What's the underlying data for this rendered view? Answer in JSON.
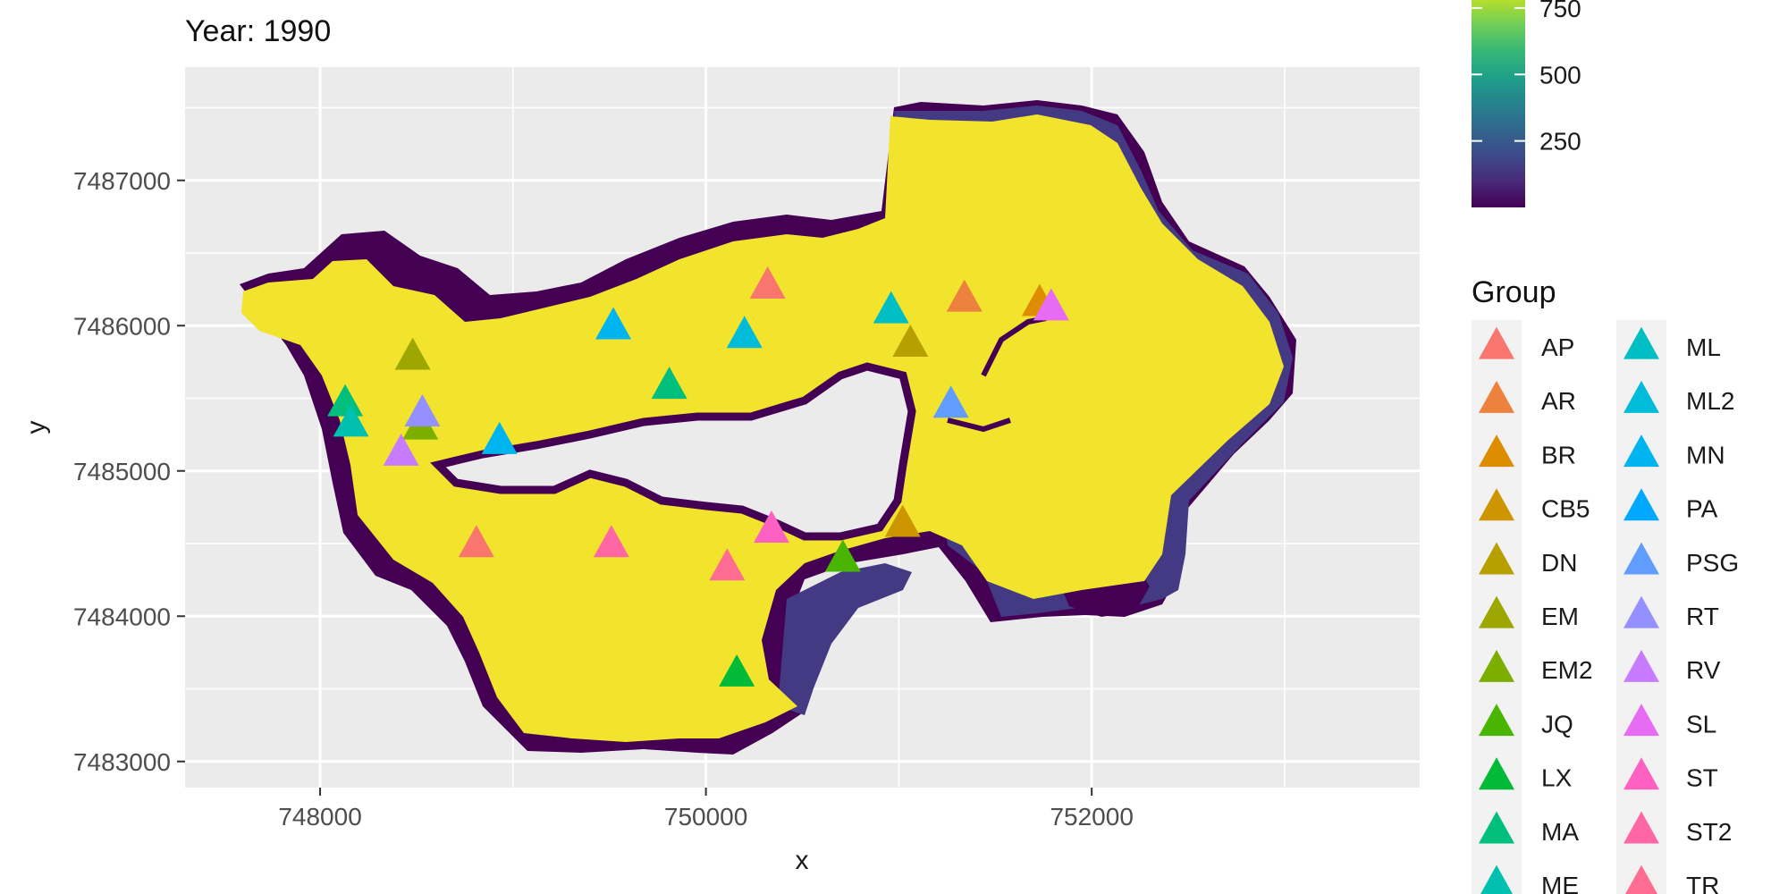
{
  "chart_data": {
    "type": "scatter",
    "title": "Year: 1990",
    "xlabel": "x",
    "ylabel": "y",
    "xlim": [
      747300,
      753700
    ],
    "ylim": [
      7482820,
      7487780
    ],
    "x_ticks": [
      748000,
      750000,
      752000
    ],
    "x_tick_labels": [
      "748000",
      "750000",
      "752000"
    ],
    "y_ticks": [
      7483000,
      7484000,
      7485000,
      7486000,
      7487000
    ],
    "y_tick_labels": [
      "7483000",
      "7484000",
      "7485000",
      "7486000",
      "7487000"
    ],
    "grid": true,
    "background_raster": {
      "description_colors": {
        "land": "#f2e42d",
        "border_dark": "#440154",
        "border_mid": "#433a83"
      }
    },
    "colorbar": {
      "palette": "viridis",
      "tick_labels": [
        "750",
        "500",
        "250"
      ],
      "tick_values": [
        750,
        500,
        250
      ]
    },
    "legend": {
      "title": "Group",
      "placement": "right",
      "col1": [
        {
          "label": "AP",
          "color": "#F8766D"
        },
        {
          "label": "AR",
          "color": "#ED813E"
        },
        {
          "label": "BR",
          "color": "#DE8C00"
        },
        {
          "label": "CB5",
          "color": "#CD9600"
        },
        {
          "label": "DN",
          "color": "#B79F00"
        },
        {
          "label": "EM",
          "color": "#9DA700"
        },
        {
          "label": "EM2",
          "color": "#7CAE00"
        },
        {
          "label": "JQ",
          "color": "#49B500"
        },
        {
          "label": "LX",
          "color": "#00BA38"
        },
        {
          "label": "MA",
          "color": "#00BF7D"
        },
        {
          "label": "ME",
          "color": "#00C0AF"
        }
      ],
      "col2": [
        {
          "label": "ML",
          "color": "#00BFC4"
        },
        {
          "label": "ML2",
          "color": "#00BCD8"
        },
        {
          "label": "MN",
          "color": "#00B4EF"
        },
        {
          "label": "PA",
          "color": "#00A9FF"
        },
        {
          "label": "PSG",
          "color": "#619CFF"
        },
        {
          "label": "RT",
          "color": "#9590FF"
        },
        {
          "label": "RV",
          "color": "#C77CFF"
        },
        {
          "label": "SL",
          "color": "#E76BF3"
        },
        {
          "label": "ST",
          "color": "#FF61C3"
        },
        {
          "label": "ST2",
          "color": "#FF67A4"
        },
        {
          "label": "TR",
          "color": "#FF6C91"
        }
      ]
    },
    "points": [
      {
        "group": "AP",
        "x": 750320,
        "y": 7486270,
        "color": "#F8766D"
      },
      {
        "group": "AP",
        "x": 748810,
        "y": 7484490,
        "color": "#F8766D"
      },
      {
        "group": "AR",
        "x": 751340,
        "y": 7486180,
        "color": "#ED813E"
      },
      {
        "group": "BR",
        "x": 751730,
        "y": 7486150,
        "color": "#DE8C00"
      },
      {
        "group": "CB5",
        "x": 751020,
        "y": 7484630,
        "color": "#CD9600"
      },
      {
        "group": "DN",
        "x": 751060,
        "y": 7485870,
        "color": "#B79F00"
      },
      {
        "group": "EM",
        "x": 748480,
        "y": 7485780,
        "color": "#9DA700"
      },
      {
        "group": "EM2",
        "x": 748520,
        "y": 7485300,
        "color": "#7CAE00"
      },
      {
        "group": "JQ",
        "x": 750710,
        "y": 7484390,
        "color": "#49B500"
      },
      {
        "group": "LX",
        "x": 750160,
        "y": 7483600,
        "color": "#00BA38"
      },
      {
        "group": "MA",
        "x": 749810,
        "y": 7485580,
        "color": "#00BF7D"
      },
      {
        "group": "MA",
        "x": 748130,
        "y": 7485460,
        "color": "#00BF7D"
      },
      {
        "group": "ME",
        "x": 748160,
        "y": 7485320,
        "color": "#00C0AF"
      },
      {
        "group": "ML",
        "x": 750960,
        "y": 7486100,
        "color": "#00BFC4"
      },
      {
        "group": "ML2",
        "x": 750200,
        "y": 7485930,
        "color": "#00BCD8"
      },
      {
        "group": "MN",
        "x": 749520,
        "y": 7485990,
        "color": "#00B4EF"
      },
      {
        "group": "MN",
        "x": 748930,
        "y": 7485200,
        "color": "#00B4EF"
      },
      {
        "group": "PSG",
        "x": 751270,
        "y": 7485450,
        "color": "#619CFF"
      },
      {
        "group": "RT",
        "x": 748530,
        "y": 7485390,
        "color": "#9590FF"
      },
      {
        "group": "RV",
        "x": 748420,
        "y": 7485120,
        "color": "#C77CFF"
      },
      {
        "group": "SL",
        "x": 751790,
        "y": 7486120,
        "color": "#E76BF3"
      },
      {
        "group": "ST",
        "x": 750340,
        "y": 7484590,
        "color": "#FF61C3"
      },
      {
        "group": "ST2",
        "x": 749510,
        "y": 7484490,
        "color": "#FF67A4"
      },
      {
        "group": "TR",
        "x": 750110,
        "y": 7484330,
        "color": "#FF6C91"
      }
    ]
  }
}
